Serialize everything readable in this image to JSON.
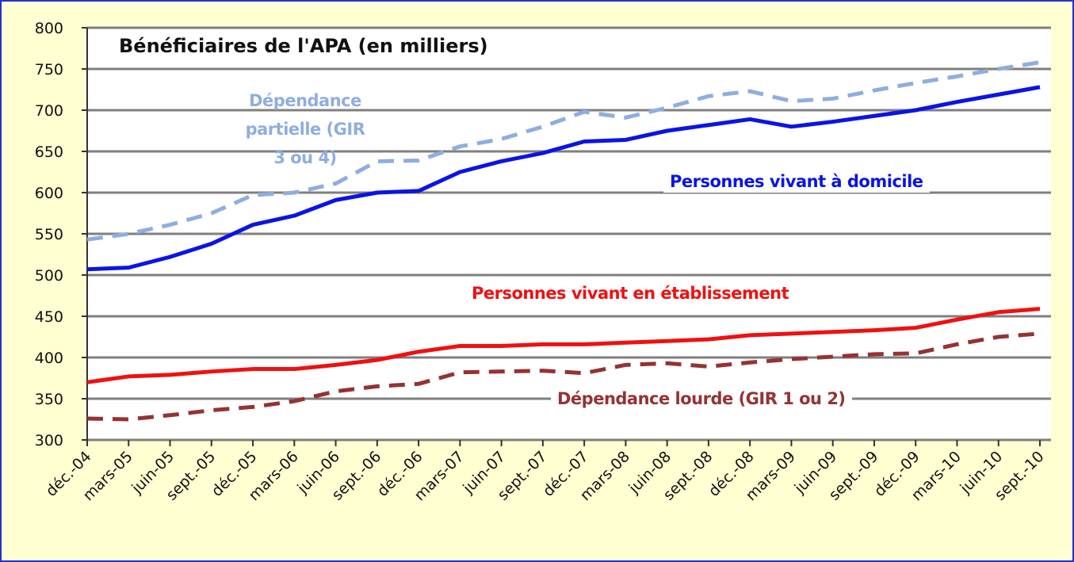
{
  "chart_data": {
    "type": "line",
    "title": "Bénéficiaires de l'APA (en milliers)",
    "categories": [
      "déc.-04",
      "mars-05",
      "juin-05",
      "sept.-05",
      "déc.-05",
      "mars-06",
      "juin-06",
      "sept.-06",
      "déc.-06",
      "mars-07",
      "juin-07",
      "sept.-07",
      "déc.-07",
      "mars-08",
      "juin-08",
      "sept.-08",
      "déc.-08",
      "mars-09",
      "juin-09",
      "sept.-09",
      "déc.-09",
      "mars-10",
      "juin-10",
      "sept.-10"
    ],
    "series": [
      {
        "name": "Dépendance partielle (GIR 3 ou 4)",
        "color": "#8eaee0",
        "dashed": true,
        "values": [
          543,
          550,
          561,
          575,
          597,
          600,
          611,
          638,
          639,
          656,
          665,
          680,
          698,
          691,
          703,
          717,
          723,
          711,
          714,
          724,
          733,
          741,
          750,
          758
        ]
      },
      {
        "name": "Personnes vivant à domicile",
        "color": "#0a14e6",
        "dashed": false,
        "values": [
          507,
          509,
          522,
          538,
          561,
          572,
          591,
          600,
          602,
          625,
          638,
          648,
          662,
          664,
          675,
          682,
          689,
          680,
          686,
          693,
          700,
          710,
          719,
          728
        ]
      },
      {
        "name": "Personnes vivant en établissement",
        "color": "#f01010",
        "dashed": false,
        "values": [
          370,
          377,
          379,
          383,
          386,
          386,
          391,
          397,
          407,
          414,
          414,
          416,
          416,
          418,
          420,
          422,
          427,
          429,
          431,
          433,
          436,
          446,
          455,
          459
        ]
      },
      {
        "name": "Dépendance lourde (GIR 1 ou 2)",
        "color": "#963232",
        "dashed": true,
        "values": [
          326,
          325,
          330,
          336,
          340,
          347,
          359,
          365,
          368,
          382,
          383,
          384,
          381,
          391,
          393,
          389,
          394,
          398,
          401,
          404,
          405,
          416,
          425,
          429
        ]
      }
    ],
    "ylim": [
      300,
      800
    ],
    "yticks": [
      300,
      350,
      400,
      450,
      500,
      550,
      600,
      650,
      700,
      750,
      800
    ],
    "grid": true
  }
}
